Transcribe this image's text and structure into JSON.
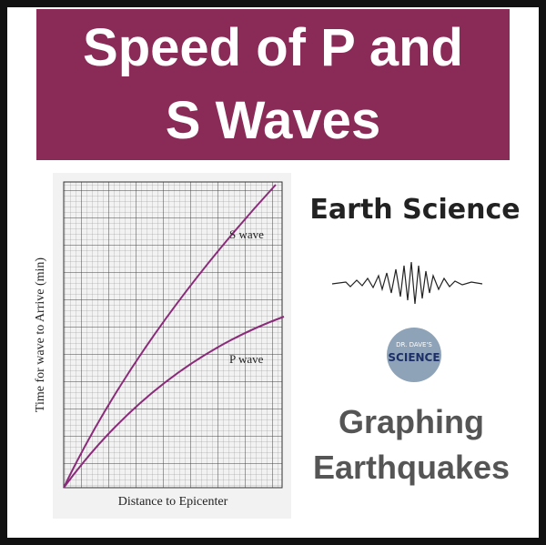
{
  "header": {
    "title_lines": [
      "Speed of P and",
      "S Waves"
    ]
  },
  "graph": {
    "y_label": "Time for wave to Arrive (min)",
    "x_label": "Distance to Epicenter",
    "s_label": "S wave",
    "p_label": "P wave"
  },
  "subject": "Earth Science",
  "logo": {
    "lines": [
      "DR. DAVE'S",
      "SCIENCE"
    ]
  },
  "footer": {
    "lines": [
      "Graphing",
      "Earthquakes"
    ]
  }
}
